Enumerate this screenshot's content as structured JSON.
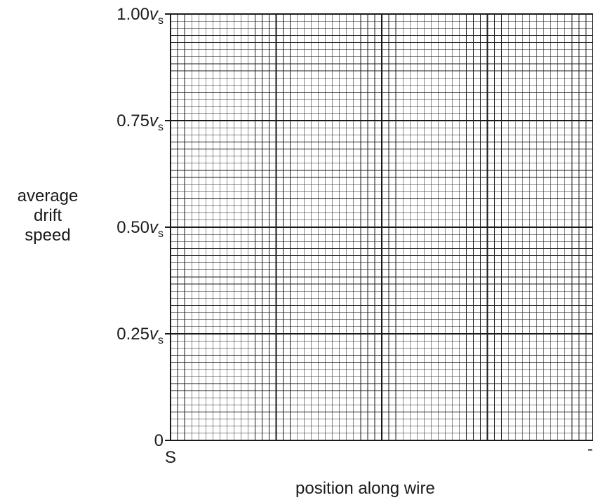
{
  "chart_data": {
    "type": "line",
    "title": "",
    "xlabel": "position along wire",
    "ylabel_lines": [
      "average",
      "drift",
      "speed"
    ],
    "x_start_label": "S",
    "x_end_label": "-",
    "y_ticks": [
      {
        "value": 0,
        "label": "0",
        "sub": ""
      },
      {
        "value": 0.25,
        "label": "0.25",
        "sub": "s"
      },
      {
        "value": 0.5,
        "label": "0.50",
        "sub": "s"
      },
      {
        "value": 0.75,
        "label": "0.75",
        "sub": "s"
      },
      {
        "value": 1.0,
        "label": "1.00",
        "sub": "s"
      }
    ],
    "y_unit_symbol": "v",
    "ylim": [
      0,
      1.0
    ],
    "grid": true,
    "series": []
  }
}
